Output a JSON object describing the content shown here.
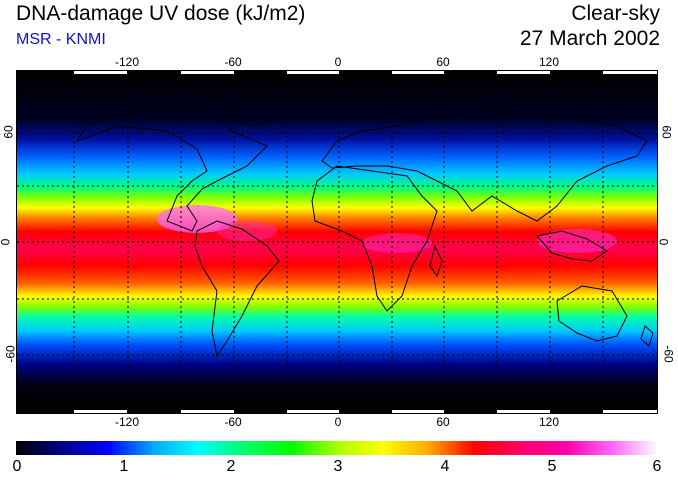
{
  "header": {
    "title": "DNA-damage UV dose (kJ/m2)",
    "subtitle": "MSR - KNMI",
    "condition": "Clear-sky",
    "date": "27 March 2002"
  },
  "colors": {
    "subtitle": "#1010d0",
    "colorscale": [
      "#000000",
      "#00008b",
      "#0000ff",
      "#00aaff",
      "#00ffff",
      "#00ff66",
      "#00ff00",
      "#aaff00",
      "#ffff00",
      "#ffaa00",
      "#ff0000",
      "#ff0066",
      "#ff00aa",
      "#ff66ff",
      "#ffffff"
    ]
  },
  "map": {
    "longitude_ticks": [
      "-120",
      "-60",
      "0",
      "60",
      "120"
    ],
    "latitude_ticks": [
      "60",
      "0",
      "-60"
    ],
    "graticule": "dashed"
  },
  "colorbar": {
    "labels": [
      "0",
      "1",
      "2",
      "3",
      "4",
      "5",
      "6"
    ],
    "min": 0,
    "max": 6
  }
}
